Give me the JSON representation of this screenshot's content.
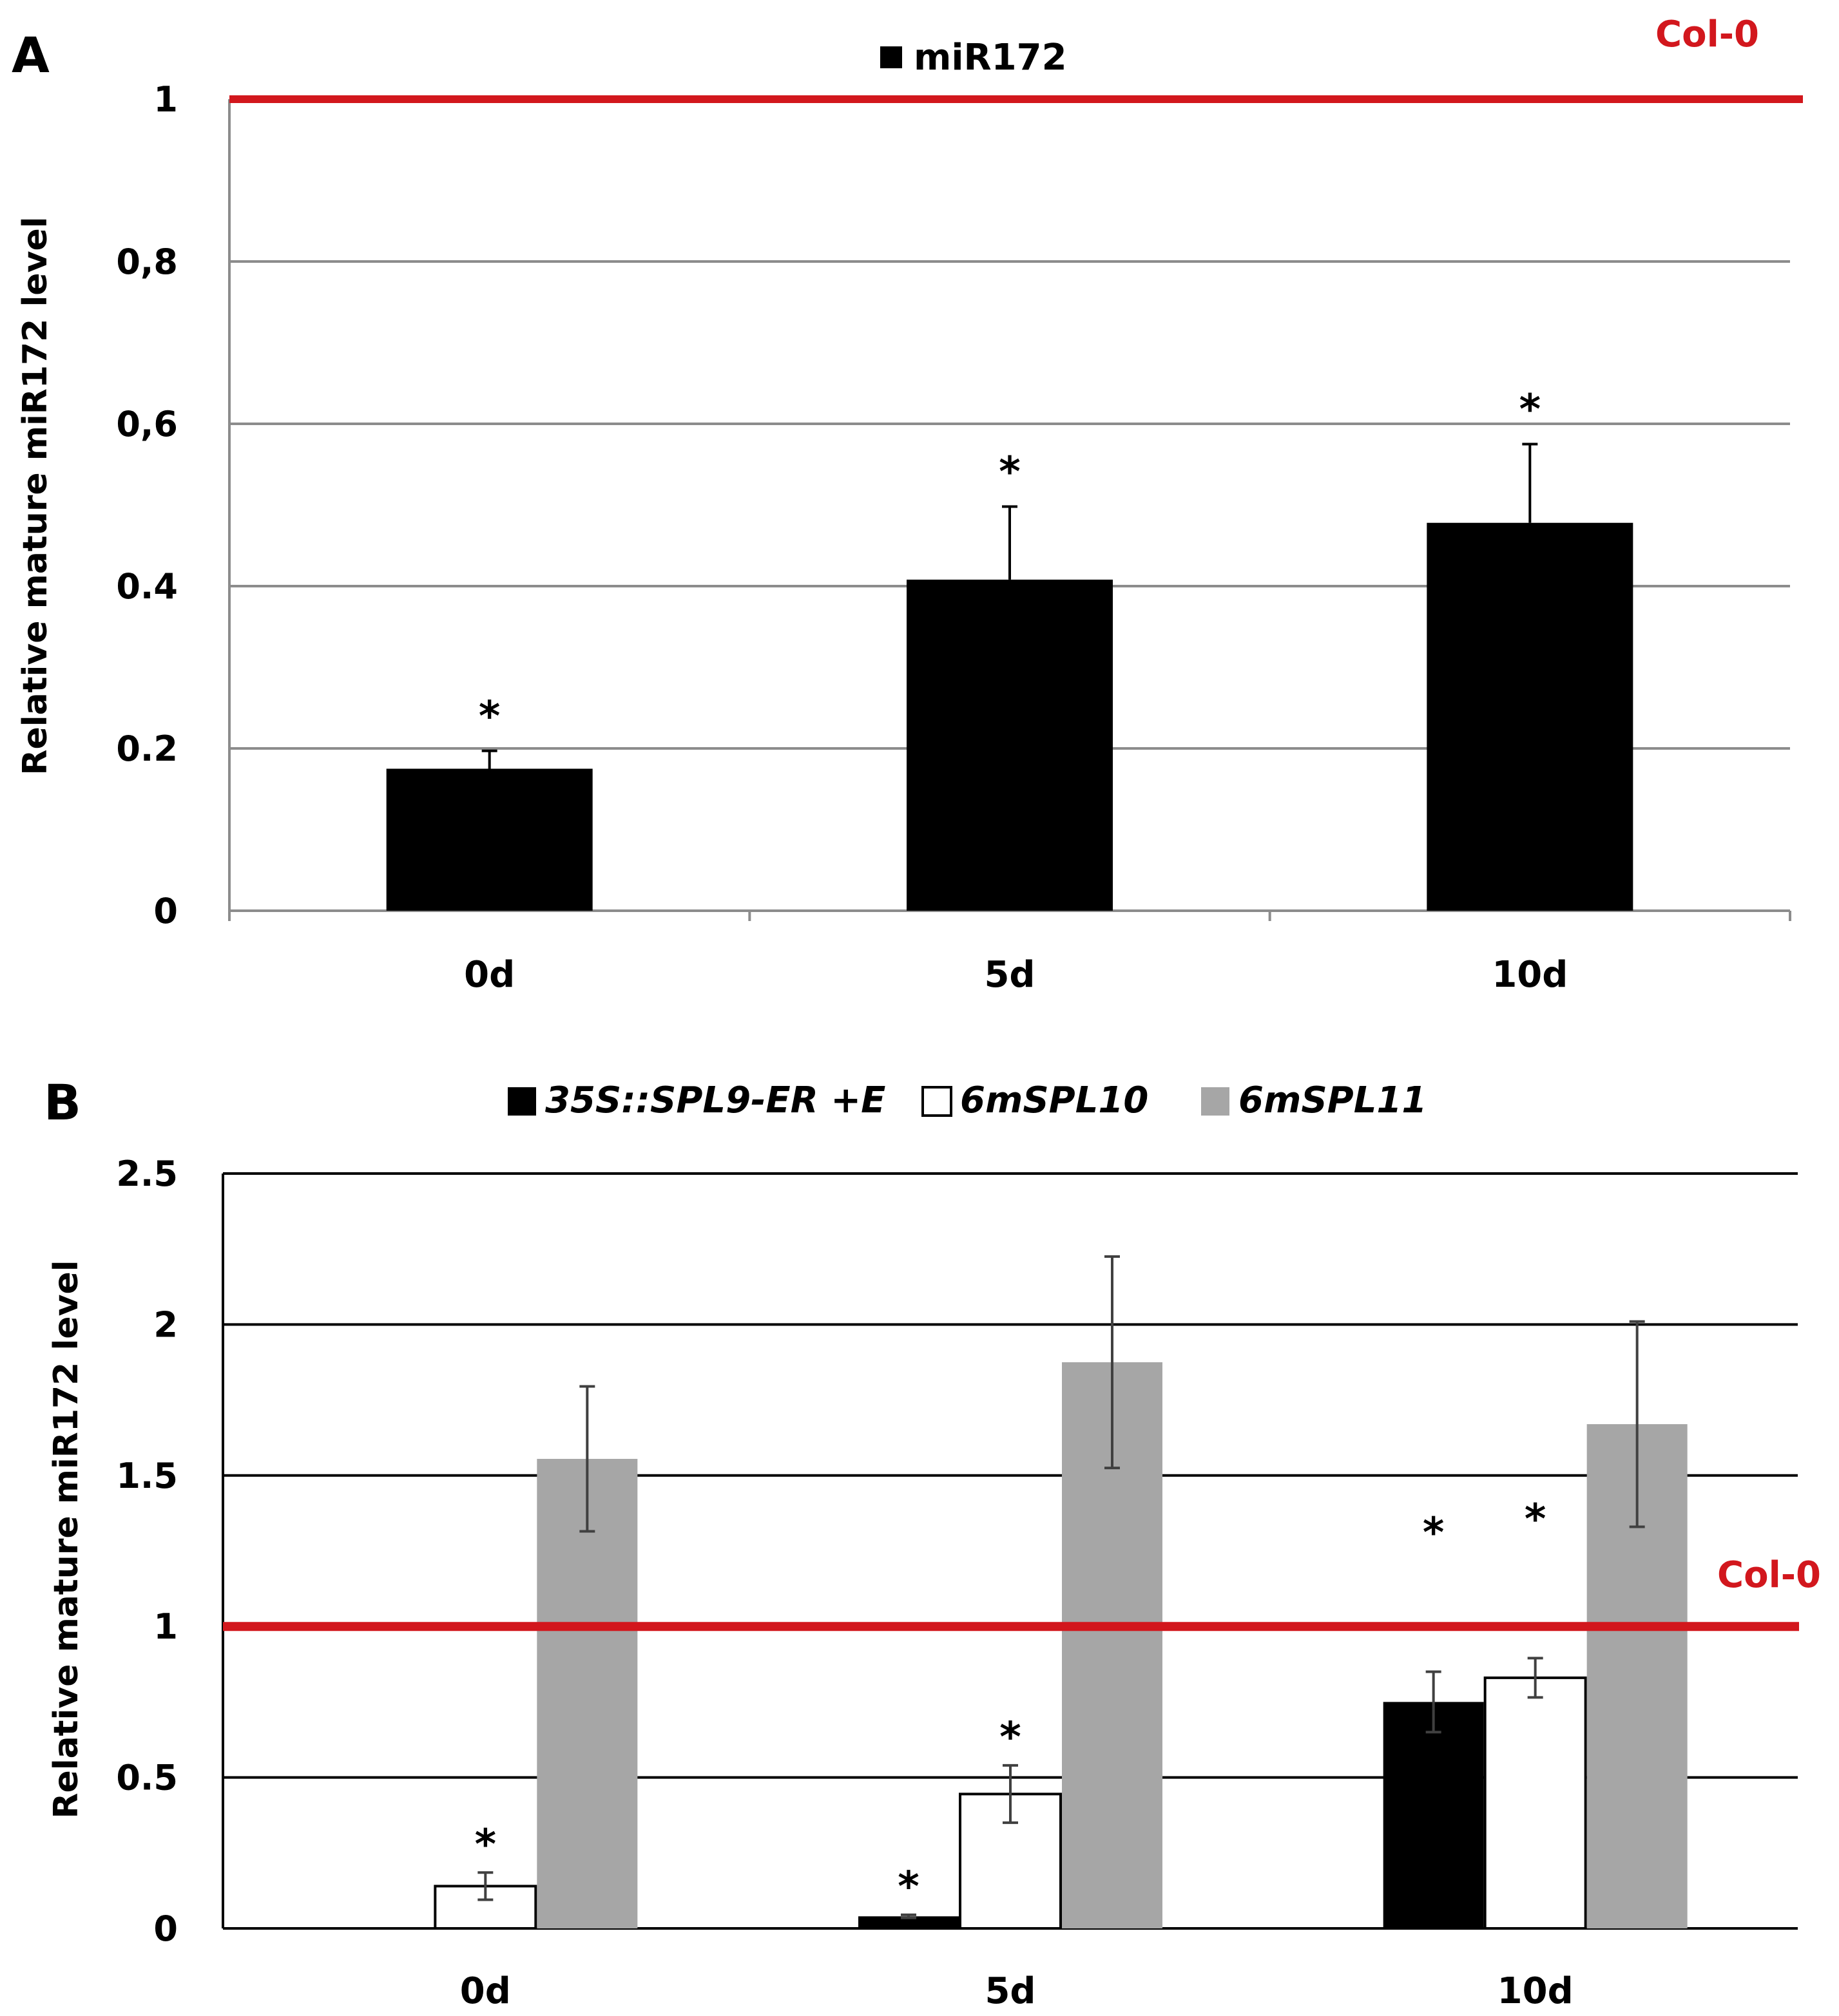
{
  "colors": {
    "reference_line": "#d2171d",
    "grid_a": "#8c8c8c",
    "grid_b": "#000000",
    "axis": "#8c8c8c",
    "series_black": "#000000",
    "series_white": "#ffffff",
    "series_gray": "#a6a6a6",
    "errorbar": "#404040"
  },
  "chart_data": [
    {
      "panel": "A",
      "type": "bar",
      "title": "",
      "ylabel": "Relative mature miR172 level",
      "xlabel": "",
      "ylim": [
        0,
        1
      ],
      "yticks": [
        0,
        0.2,
        0.4,
        0.6,
        0.8,
        1
      ],
      "ytick_labels": [
        "0",
        "0.2",
        "0.4",
        "0,6",
        "0,8",
        "1"
      ],
      "grid": true,
      "legend_position": "top-center",
      "categories": [
        "0d",
        "5d",
        "10d"
      ],
      "series": [
        {
          "name": "miR172",
          "color": "#000000",
          "values": [
            0.175,
            0.408,
            0.478
          ],
          "errors": [
            0.022,
            0.09,
            0.097
          ],
          "significance": [
            "*",
            "*",
            "*"
          ]
        }
      ],
      "reference_line": {
        "label": "Col-0",
        "value": 1
      }
    },
    {
      "panel": "B",
      "type": "bar",
      "title": "",
      "ylabel": "Relative mature miR172 level",
      "xlabel": "",
      "ylim": [
        0,
        2.5
      ],
      "yticks": [
        0,
        0.5,
        1,
        1.5,
        2,
        2.5
      ],
      "ytick_labels": [
        "0",
        "0.5",
        "1",
        "1.5",
        "2",
        "2.5"
      ],
      "grid": true,
      "legend_position": "top-center",
      "categories": [
        "0d",
        "5d",
        "10d"
      ],
      "series": [
        {
          "name": "35S::SPL9-ER +E",
          "color": "#000000",
          "values": [
            0,
            0.04,
            0.75
          ],
          "errors": [
            0,
            0.005,
            0.1
          ],
          "significance": [
            "",
            "*",
            "*"
          ]
        },
        {
          "name": "6mSPL10",
          "color": "#ffffff",
          "values": [
            0.14,
            0.445,
            0.83
          ],
          "errors": [
            0.045,
            0.095,
            0.065
          ],
          "significance": [
            "*",
            "*",
            "*"
          ]
        },
        {
          "name": "6mSPL11",
          "color": "#a6a6a6",
          "values": [
            1.555,
            1.875,
            1.67
          ],
          "errors": [
            0.24,
            0.35,
            0.34
          ],
          "significance": [
            "",
            "",
            ""
          ]
        }
      ],
      "reference_line": {
        "label": "Col-0",
        "value": 1
      }
    }
  ]
}
